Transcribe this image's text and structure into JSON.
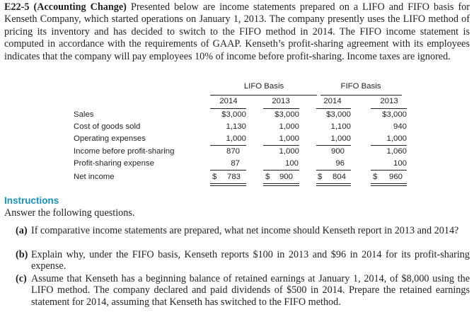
{
  "intro": {
    "label": "E22-5 (Accounting Change)",
    "text": "Presented below are income statements prepared on a LIFO and FIFO basis for Kenseth Company, which started operations on January 1, 2013. The company presently uses the LIFO method of pricing its inventory and has decided to switch to the FIFO method in 2014. The FIFO income statement is computed in accordance with the requirements of GAAP. Kenseth’s profit-sharing agreement with its employees indicates that the company will pay employees 10% of income before profit-sharing. Income taxes are ignored."
  },
  "table": {
    "group_lifo": "LIFO Basis",
    "group_fifo": "FIFO Basis",
    "years": [
      "2014",
      "2013",
      "2014",
      "2013"
    ],
    "rows": [
      {
        "label": "Sales",
        "values": [
          "$3,000",
          "$3,000",
          "$3,000",
          "$3,000"
        ]
      },
      {
        "label": "Cost of goods sold",
        "values": [
          "1,130",
          "1,000",
          "1,100",
          "940"
        ]
      },
      {
        "label": "Operating expenses",
        "values": [
          "1,000",
          "1,000",
          "1,000",
          "1,000"
        ]
      },
      {
        "label": "Income before profit-sharing",
        "values": [
          "870",
          "1,000",
          "900",
          "1,060"
        ]
      },
      {
        "label": "Profit-sharing expense",
        "values": [
          "87",
          "100",
          "96",
          "100"
        ]
      },
      {
        "label": "Net income",
        "values": [
          "783",
          "900",
          "804",
          "960"
        ]
      }
    ],
    "currency": "$"
  },
  "instructions": {
    "title": "Instructions",
    "lead": "Answer the following questions.",
    "items": [
      {
        "label": "(a)",
        "text": "If comparative income statements are prepared, what net income should Kenseth report in 2013 and 2014?"
      },
      {
        "label": "(b)",
        "text": "Explain why, under the FIFO basis, Kenseth reports $100 in 2013 and $96 in 2014 for its profit-sharing expense."
      },
      {
        "label": "(c)",
        "text": "Assume that Kenseth has a beginning balance of retained earnings at January 1, 2014, of $8,000 using the LIFO method. The company declared and paid dividends of $500 in 2014. Prepare the retained earnings statement for 2014, assuming that Kenseth has switched to the FIFO method."
      }
    ]
  }
}
